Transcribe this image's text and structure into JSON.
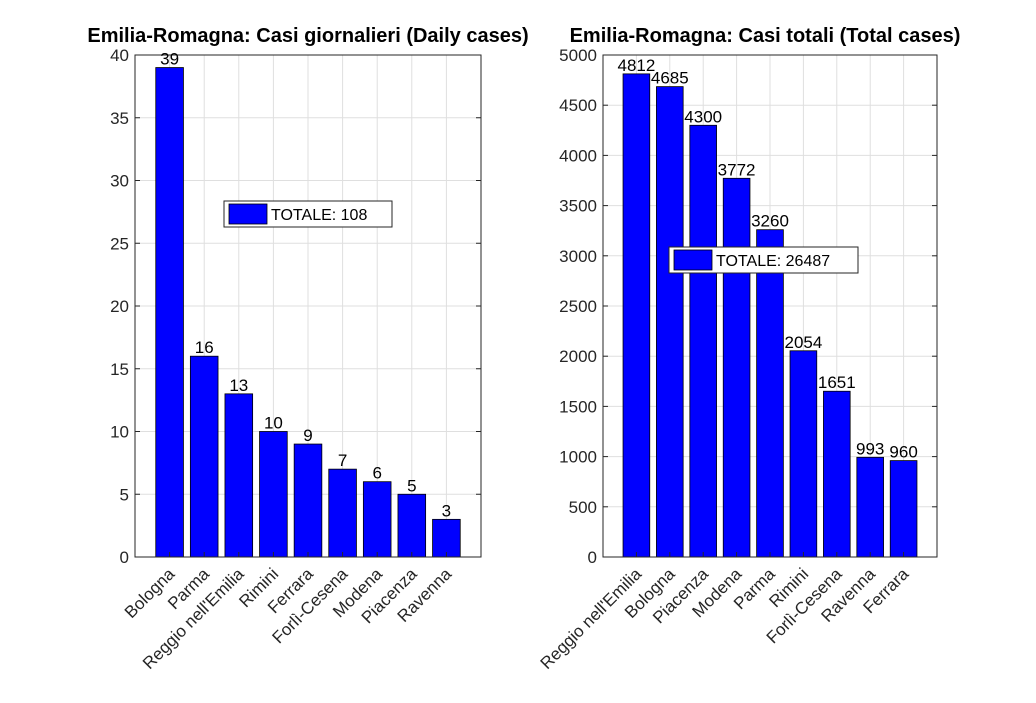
{
  "chart_data": [
    {
      "type": "bar",
      "title": "Emilia-Romagna: Casi giornalieri (Daily cases)",
      "categories": [
        "Bologna",
        "Parma",
        "Reggio nell'Emilia",
        "Rimini",
        "Ferrara",
        "Forlì-Cesena",
        "Modena",
        "Piacenza",
        "Ravenna"
      ],
      "values": [
        39,
        16,
        13,
        10,
        9,
        7,
        6,
        5,
        3
      ],
      "data_labels": [
        "39",
        "16",
        "13",
        "10",
        "9",
        "7",
        "6",
        "5",
        "3"
      ],
      "ylim": [
        0,
        40
      ],
      "yticks": [
        "0",
        "5",
        "10",
        "15",
        "20",
        "25",
        "30",
        "35",
        "40"
      ],
      "legend": {
        "label": "TOTALE: 108",
        "color": "#0000ff"
      },
      "grid": true,
      "bar_color": "#0000ff"
    },
    {
      "type": "bar",
      "title": "Emilia-Romagna: Casi totali (Total cases)",
      "categories": [
        "Reggio nell'Emilia",
        "Bologna",
        "Piacenza",
        "Modena",
        "Parma",
        "Rimini",
        "Forlì-Cesena",
        "Ravenna",
        "Ferrara"
      ],
      "values": [
        4812,
        4685,
        4300,
        3772,
        3260,
        2054,
        1651,
        993,
        960
      ],
      "data_labels": [
        "4812",
        "4685",
        "4300",
        "3772",
        "3260",
        "2054",
        "1651",
        "993",
        "960"
      ],
      "ylim": [
        0,
        5000
      ],
      "yticks": [
        "0",
        "500",
        "1000",
        "1500",
        "2000",
        "2500",
        "3000",
        "3500",
        "4000",
        "4500",
        "5000"
      ],
      "legend": {
        "label": "TOTALE: 26487",
        "color": "#0000ff"
      },
      "grid": true,
      "bar_color": "#0000ff"
    }
  ]
}
